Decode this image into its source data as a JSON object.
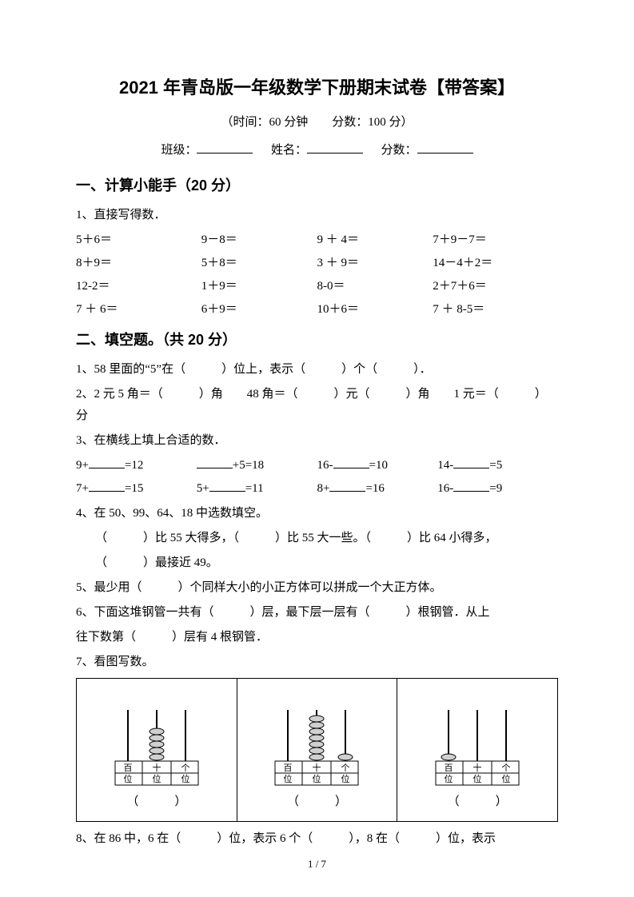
{
  "title": "2021 年青岛版一年级数学下册期末试卷【带答案】",
  "subtitle": "（时间：60 分钟　　分数：100 分）",
  "info": {
    "class_label": "班级：",
    "name_label": "姓名：",
    "score_label": "分数："
  },
  "section1": {
    "heading": "一、计算小能手（20 分）",
    "q1_label": "1、直接写得数．",
    "rows": [
      [
        "5＋6＝",
        "9－8＝",
        "9 ＋ 4＝",
        "7＋9－7＝"
      ],
      [
        "8＋9＝",
        "5＋8＝",
        "3 ＋ 9＝",
        "14－4＋2＝"
      ],
      [
        "12-2＝",
        "1＋9＝",
        "8-0＝",
        "2＋7＋6＝"
      ],
      [
        "7 ＋ 6＝",
        "6＋9＝",
        "10＋6＝",
        "7 ＋ 8-5＝"
      ]
    ]
  },
  "section2": {
    "heading": "二、填空题。（共 20 分）",
    "q1": "1、58 里面的“5”在（　　　）位上，表示（　　　）个（　　　）．",
    "q2": "2、2 元 5 角＝（　　　）角　　48 角＝（　　　）元（　　　）角　　1 元＝（　　　）分",
    "q3_label": "3、在横线上填上合适的数．",
    "q3_rows": [
      {
        "a": "9+",
        "a2": "=12",
        "b": "+5=18",
        "c": "16-",
        "c2": "=10",
        "d": "14-",
        "d2": "=5"
      },
      {
        "a": "7+",
        "a2": "=15",
        "b_pre": "5+",
        "b2": "=11",
        "c": "8+",
        "c2": "=16",
        "d": "16-",
        "d2": "=9"
      }
    ],
    "q4_label": "4、在 50、99、64、18 中选数填空。",
    "q4_line1": "（　　　）比 55 大得多，（　　　）比 55 大一些。（　　　）比 64 小得多，",
    "q4_line2": "（　　　）最接近 49。",
    "q5": "5、最少用（　　　）个同样大小的小正方体可以拼成一个大正方体。",
    "q6_line1": "6、下面这堆钢管一共有（　　　）层，最下层一层有（　　　）根钢管．从上",
    "q6_line2": "往下数第（　　　）层有 4 根钢管．",
    "q7_label": "7、看图写数。",
    "abacus_labels": {
      "h": "百",
      "t": "十",
      "o": "个",
      "place": "位"
    },
    "q8": "8、在 86 中，6 在（　　　）位，表示 6 个（　　　），8 在（　　　）位，表示"
  },
  "abacus": [
    {
      "hundreds": 0,
      "tens": 5,
      "ones": 0
    },
    {
      "hundreds": 0,
      "tens": 7,
      "ones": 1
    },
    {
      "hundreds": 1,
      "tens": 0,
      "ones": 0
    }
  ],
  "answer_paren": "（　　　）",
  "page_number": "1 / 7",
  "colors": {
    "text": "#000000",
    "bg": "#ffffff",
    "bead_fill": "#d0d0d0",
    "bead_stroke": "#000000"
  }
}
